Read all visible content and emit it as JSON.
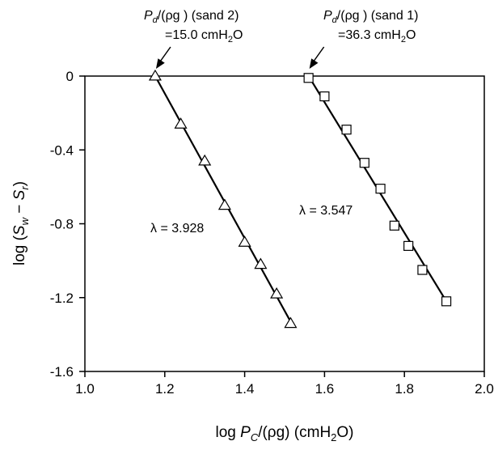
{
  "chart_data": {
    "type": "scatter",
    "xlabel": {
      "pre": "log ",
      "var": "P",
      "sub": "C",
      "post": "/(ρg) (cmH",
      "sub2": "2",
      "end": "O)"
    },
    "ylabel": {
      "pre": "log (",
      "v1": "S",
      "s1": "w",
      "mid": " − ",
      "v2": "S",
      "s2": "r",
      "end": ")"
    },
    "xlim": [
      1.0,
      2.0
    ],
    "ylim": [
      -1.6,
      0
    ],
    "xticks": [
      1.0,
      1.2,
      1.4,
      1.6,
      1.8,
      2.0
    ],
    "xtick_labels": [
      "1.0",
      "1.2",
      "1.4",
      "1.6",
      "1.8",
      "2.0"
    ],
    "yticks": [
      0,
      -0.4,
      -0.8,
      -1.2,
      -1.6
    ],
    "ytick_labels": [
      "0",
      "-0.4",
      "-0.8",
      "-1.2",
      "-1.6"
    ],
    "grid": false,
    "series": [
      {
        "name": "sand 2",
        "marker": "triangle",
        "points": [
          [
            1.176,
            0.0
          ],
          [
            1.24,
            -0.26
          ],
          [
            1.3,
            -0.46
          ],
          [
            1.35,
            -0.7
          ],
          [
            1.4,
            -0.9
          ],
          [
            1.44,
            -1.02
          ],
          [
            1.48,
            -1.18
          ],
          [
            1.515,
            -1.34
          ]
        ],
        "fit_line": [
          [
            1.176,
            0.0
          ],
          [
            1.515,
            -1.33
          ]
        ]
      },
      {
        "name": "sand 1",
        "marker": "square",
        "points": [
          [
            1.56,
            -0.01
          ],
          [
            1.6,
            -0.11
          ],
          [
            1.655,
            -0.29
          ],
          [
            1.7,
            -0.47
          ],
          [
            1.74,
            -0.61
          ],
          [
            1.775,
            -0.81
          ],
          [
            1.81,
            -0.92
          ],
          [
            1.845,
            -1.05
          ],
          [
            1.905,
            -1.22
          ]
        ],
        "fit_line": [
          [
            1.56,
            0.0
          ],
          [
            1.905,
            -1.22
          ]
        ]
      }
    ],
    "annotations": [
      {
        "id": "sand2-pd",
        "pre": "P",
        "sub": "d",
        "post": "/(ρg )  (sand 2)",
        "line2_pre": "=15.0 cmH",
        "line2_sub": "2",
        "line2_end": "O",
        "points_to": [
          1.176,
          0.0
        ]
      },
      {
        "id": "sand1-pd",
        "pre": "P",
        "sub": "d",
        "post": "/(ρg )  (sand 1)",
        "line2_pre": "=36.3 cmH",
        "line2_sub": "2",
        "line2_end": "O",
        "points_to": [
          1.56,
          0.0
        ]
      },
      {
        "id": "lambda-sand2",
        "text": "λ = 3.928"
      },
      {
        "id": "lambda-sand1",
        "text": "λ = 3.547"
      }
    ]
  }
}
